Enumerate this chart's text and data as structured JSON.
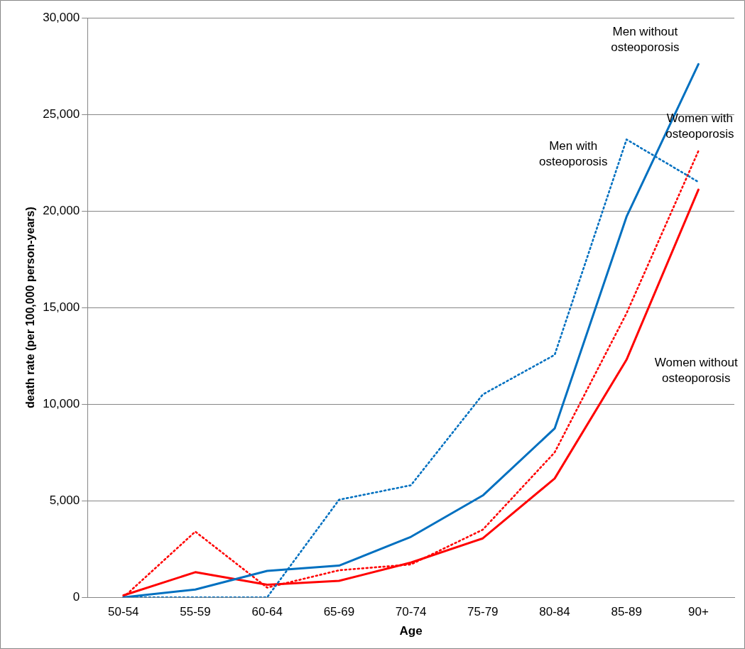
{
  "chart_data": {
    "type": "line",
    "xlabel": "Age",
    "ylabel": "death rate (per 100,000 person-years)",
    "categories": [
      "50-54",
      "55-59",
      "60-64",
      "65-69",
      "70-74",
      "75-79",
      "80-84",
      "85-89",
      "90+"
    ],
    "ylim": [
      0,
      30000
    ],
    "yticks": [
      {
        "value": 0,
        "label": "0"
      },
      {
        "value": 5000,
        "label": "5,000"
      },
      {
        "value": 10000,
        "label": "10,000"
      },
      {
        "value": 15000,
        "label": "15,000"
      },
      {
        "value": 20000,
        "label": "20,000"
      },
      {
        "value": 25000,
        "label": "25,000"
      },
      {
        "value": 30000,
        "label": "30,000"
      }
    ],
    "grid": "y",
    "legend": false,
    "marker": "none",
    "series": [
      {
        "name": "Men without osteoporosis",
        "color": "#0070c0",
        "line_style": "solid",
        "values": [
          0,
          400,
          1370,
          1640,
          3130,
          5270,
          8740,
          19700,
          27600
        ]
      },
      {
        "name": "Men with osteoporosis",
        "color": "#0070c0",
        "line_style": "dotted",
        "values": [
          0,
          0,
          0,
          5050,
          5800,
          10500,
          12550,
          23700,
          21500
        ]
      },
      {
        "name": "Women with osteoporosis",
        "color": "#ff0000",
        "line_style": "dotted",
        "values": [
          0,
          3400,
          500,
          1400,
          1700,
          3500,
          7500,
          14700,
          23100
        ]
      },
      {
        "name": "Women without osteoporosis",
        "color": "#ff0000",
        "line_style": "solid",
        "values": [
          100,
          1300,
          650,
          850,
          1800,
          3050,
          6150,
          12300,
          21100
        ]
      }
    ]
  }
}
